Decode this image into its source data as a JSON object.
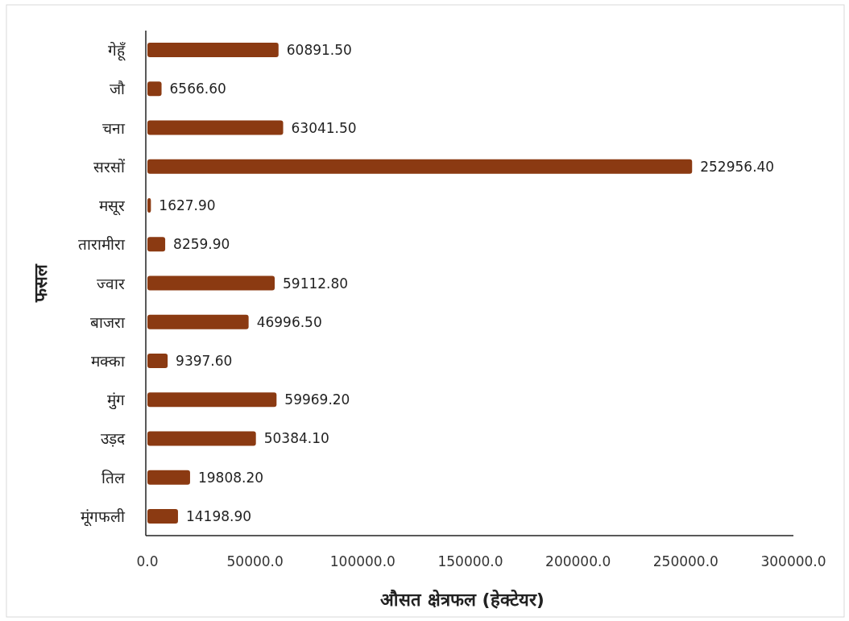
{
  "chart_data": {
    "type": "bar",
    "orientation": "horizontal",
    "xlabel": "औसत क्षेत्रफल (हेक्टेयर)",
    "ylabel": "फसल",
    "categories": [
      "गेहूँ",
      "जौ",
      "चना",
      "सरसों",
      "मसूर",
      "तारामीरा",
      "ज्वार",
      "बाजरा",
      "मक्का",
      "मुंग",
      "उड़द",
      "तिल",
      "मूंगफली"
    ],
    "values": [
      60891.5,
      6566.6,
      63041.5,
      252956.4,
      1627.9,
      8259.9,
      59112.8,
      46996.5,
      9397.6,
      59969.2,
      50384.1,
      19808.2,
      14198.9
    ],
    "value_labels": [
      "60891.50",
      "6566.60",
      "63041.50",
      "252956.40",
      "1627.90",
      "8259.90",
      "59112.80",
      "46996.50",
      "9397.60",
      "59969.20",
      "50384.10",
      "19808.20",
      "14198.90"
    ],
    "color": "#8b3a12",
    "xlim": [
      0,
      300000
    ],
    "xticks": [
      {
        "value": 0,
        "label": "0.0"
      },
      {
        "value": 50000,
        "label": "50000.0"
      },
      {
        "value": 100000,
        "label": "100000.0"
      },
      {
        "value": 150000,
        "label": "150000.0"
      },
      {
        "value": 200000,
        "label": "200000.0"
      },
      {
        "value": 250000,
        "label": "250000.0"
      },
      {
        "value": 300000,
        "label": "300000.0"
      }
    ],
    "grid": false
  }
}
